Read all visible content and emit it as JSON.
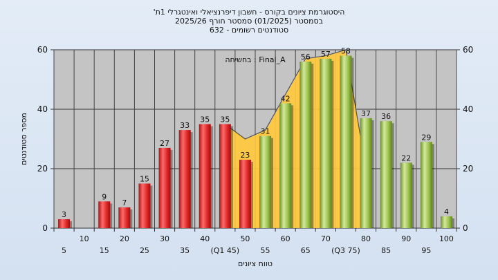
{
  "chart_data": {
    "type": "bar",
    "title_lines": [
      "'היסטוגרמת ציונים בקורס - חשבון דיפרנציאלי ואינטגרלי 1ת",
      "בסמסטר  (01/2025)  סמסטר חורף 2025/26",
      "סטודנטים רשומים - 632"
    ],
    "annotation": "בחשיחה : Final_A",
    "ylabel": "מספר סטודנטים",
    "xlabel": "טווח ציונים",
    "ylim": [
      0,
      60
    ],
    "yticks": [
      0,
      20,
      40,
      60
    ],
    "grid": true,
    "categories": [
      "5",
      "10",
      "15",
      "20",
      "25",
      "30",
      "35",
      "40",
      "45",
      "50",
      "55",
      "60",
      "65",
      "70",
      "75",
      "80",
      "85",
      "90",
      "95",
      "100"
    ],
    "x_tick_labels_display": [
      "5",
      "10",
      "15",
      "20",
      "25",
      "30",
      "35",
      "40",
      "(Q1 45)",
      "50",
      "55",
      "60",
      "65",
      "70",
      "(Q3 75)",
      "80",
      "85",
      "90",
      "95",
      "100"
    ],
    "values": [
      3,
      0,
      9,
      7,
      15,
      27,
      33,
      35,
      35,
      23,
      31,
      42,
      56,
      57,
      58,
      37,
      36,
      22,
      29,
      4
    ],
    "bar_colors": [
      "red",
      "red",
      "red",
      "red",
      "red",
      "red",
      "red",
      "red",
      "red",
      "red",
      "green",
      "green",
      "green",
      "green",
      "green",
      "green",
      "green",
      "green",
      "green",
      "green"
    ],
    "area_series": {
      "x": [
        "45",
        "50",
        "55",
        "60",
        "65",
        "70",
        "75",
        "80"
      ],
      "values": [
        35,
        30,
        33,
        45,
        57,
        58,
        60,
        20
      ]
    },
    "colors": {
      "red": "#dd2a2a",
      "green": "#94bd4a",
      "area": "#ffc83d",
      "plot_bg": "#c4c4c4",
      "page_bg": "#dae5f3"
    }
  }
}
